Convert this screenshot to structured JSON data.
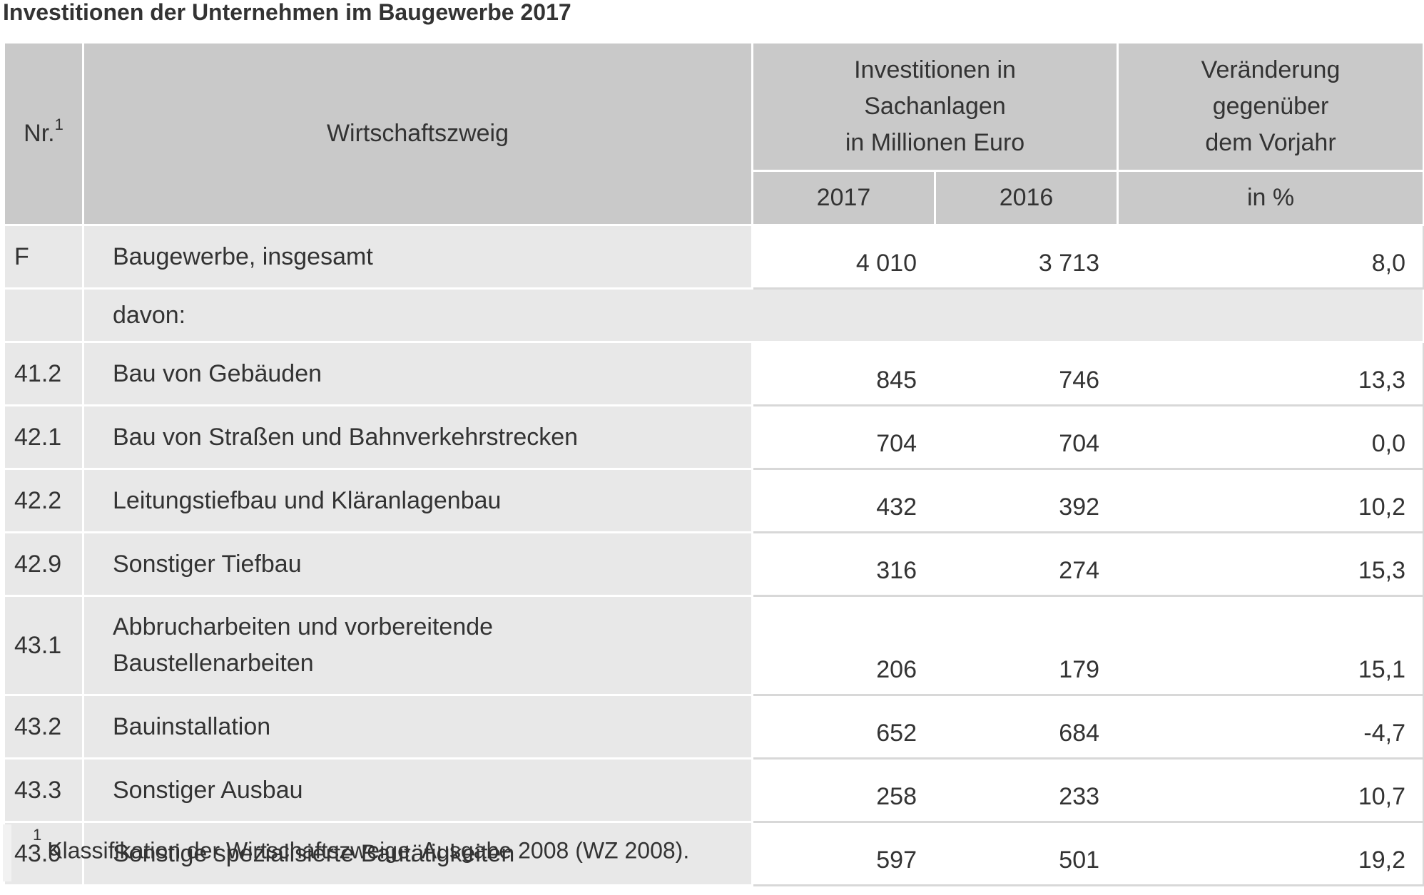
{
  "title": "Investitionen der Unternehmen im Baugewerbe 2017",
  "header": {
    "nr": "Nr.",
    "nr_footnote": "1",
    "wirtschaftszweig": "Wirtschaftszweig",
    "investitionen_line1": "Investitionen in",
    "investitionen_line2": "Sachanlagen",
    "investitionen_line3": "in Millionen Euro",
    "veraenderung_line1": "Veränderung",
    "veraenderung_line2": "gegenüber",
    "veraenderung_line3": "dem Vorjahr",
    "year_2017": "2017",
    "year_2016": "2016",
    "unit_percent": "in %"
  },
  "rows": [
    {
      "code": "F",
      "label": "Baugewerbe, insgesamt",
      "v2017": "4 010",
      "v2016": "3 713",
      "change": "8,0"
    },
    {
      "code": "",
      "label": "davon:"
    },
    {
      "code": "41.2",
      "label": "Bau von Gebäuden",
      "v2017": "845",
      "v2016": "746",
      "change": "13,3"
    },
    {
      "code": "42.1",
      "label": "Bau von Straßen und Bahnverkehrstrecken",
      "v2017": "704",
      "v2016": "704",
      "change": "0,0"
    },
    {
      "code": "42.2",
      "label": "Leitungstiefbau und Kläranlagenbau",
      "v2017": "432",
      "v2016": "392",
      "change": "10,2"
    },
    {
      "code": "42.9",
      "label": "Sonstiger Tiefbau",
      "v2017": "316",
      "v2016": "274",
      "change": "15,3"
    },
    {
      "code": "43.1",
      "label_line1": "Abbrucharbeiten und vorbereitende",
      "label_line2": "Baustellenarbeiten",
      "v2017": "206",
      "v2016": "179",
      "change": "15,1"
    },
    {
      "code": "43.2",
      "label": "Bauinstallation",
      "v2017": "652",
      "v2016": "684",
      "change": "-4,7"
    },
    {
      "code": "43.3",
      "label": "Sonstiger Ausbau",
      "v2017": "258",
      "v2016": "233",
      "change": "10,7"
    },
    {
      "code": "43.9",
      "label": "Sonstige spezialisierte Bautätigkeiten",
      "v2017": "597",
      "v2016": "501",
      "change": "19,2"
    }
  ],
  "footnote": {
    "marker": "1",
    "text": "Klassifikation der Wirtschaftszweige, Ausgabe 2008 (WZ 2008)."
  }
}
